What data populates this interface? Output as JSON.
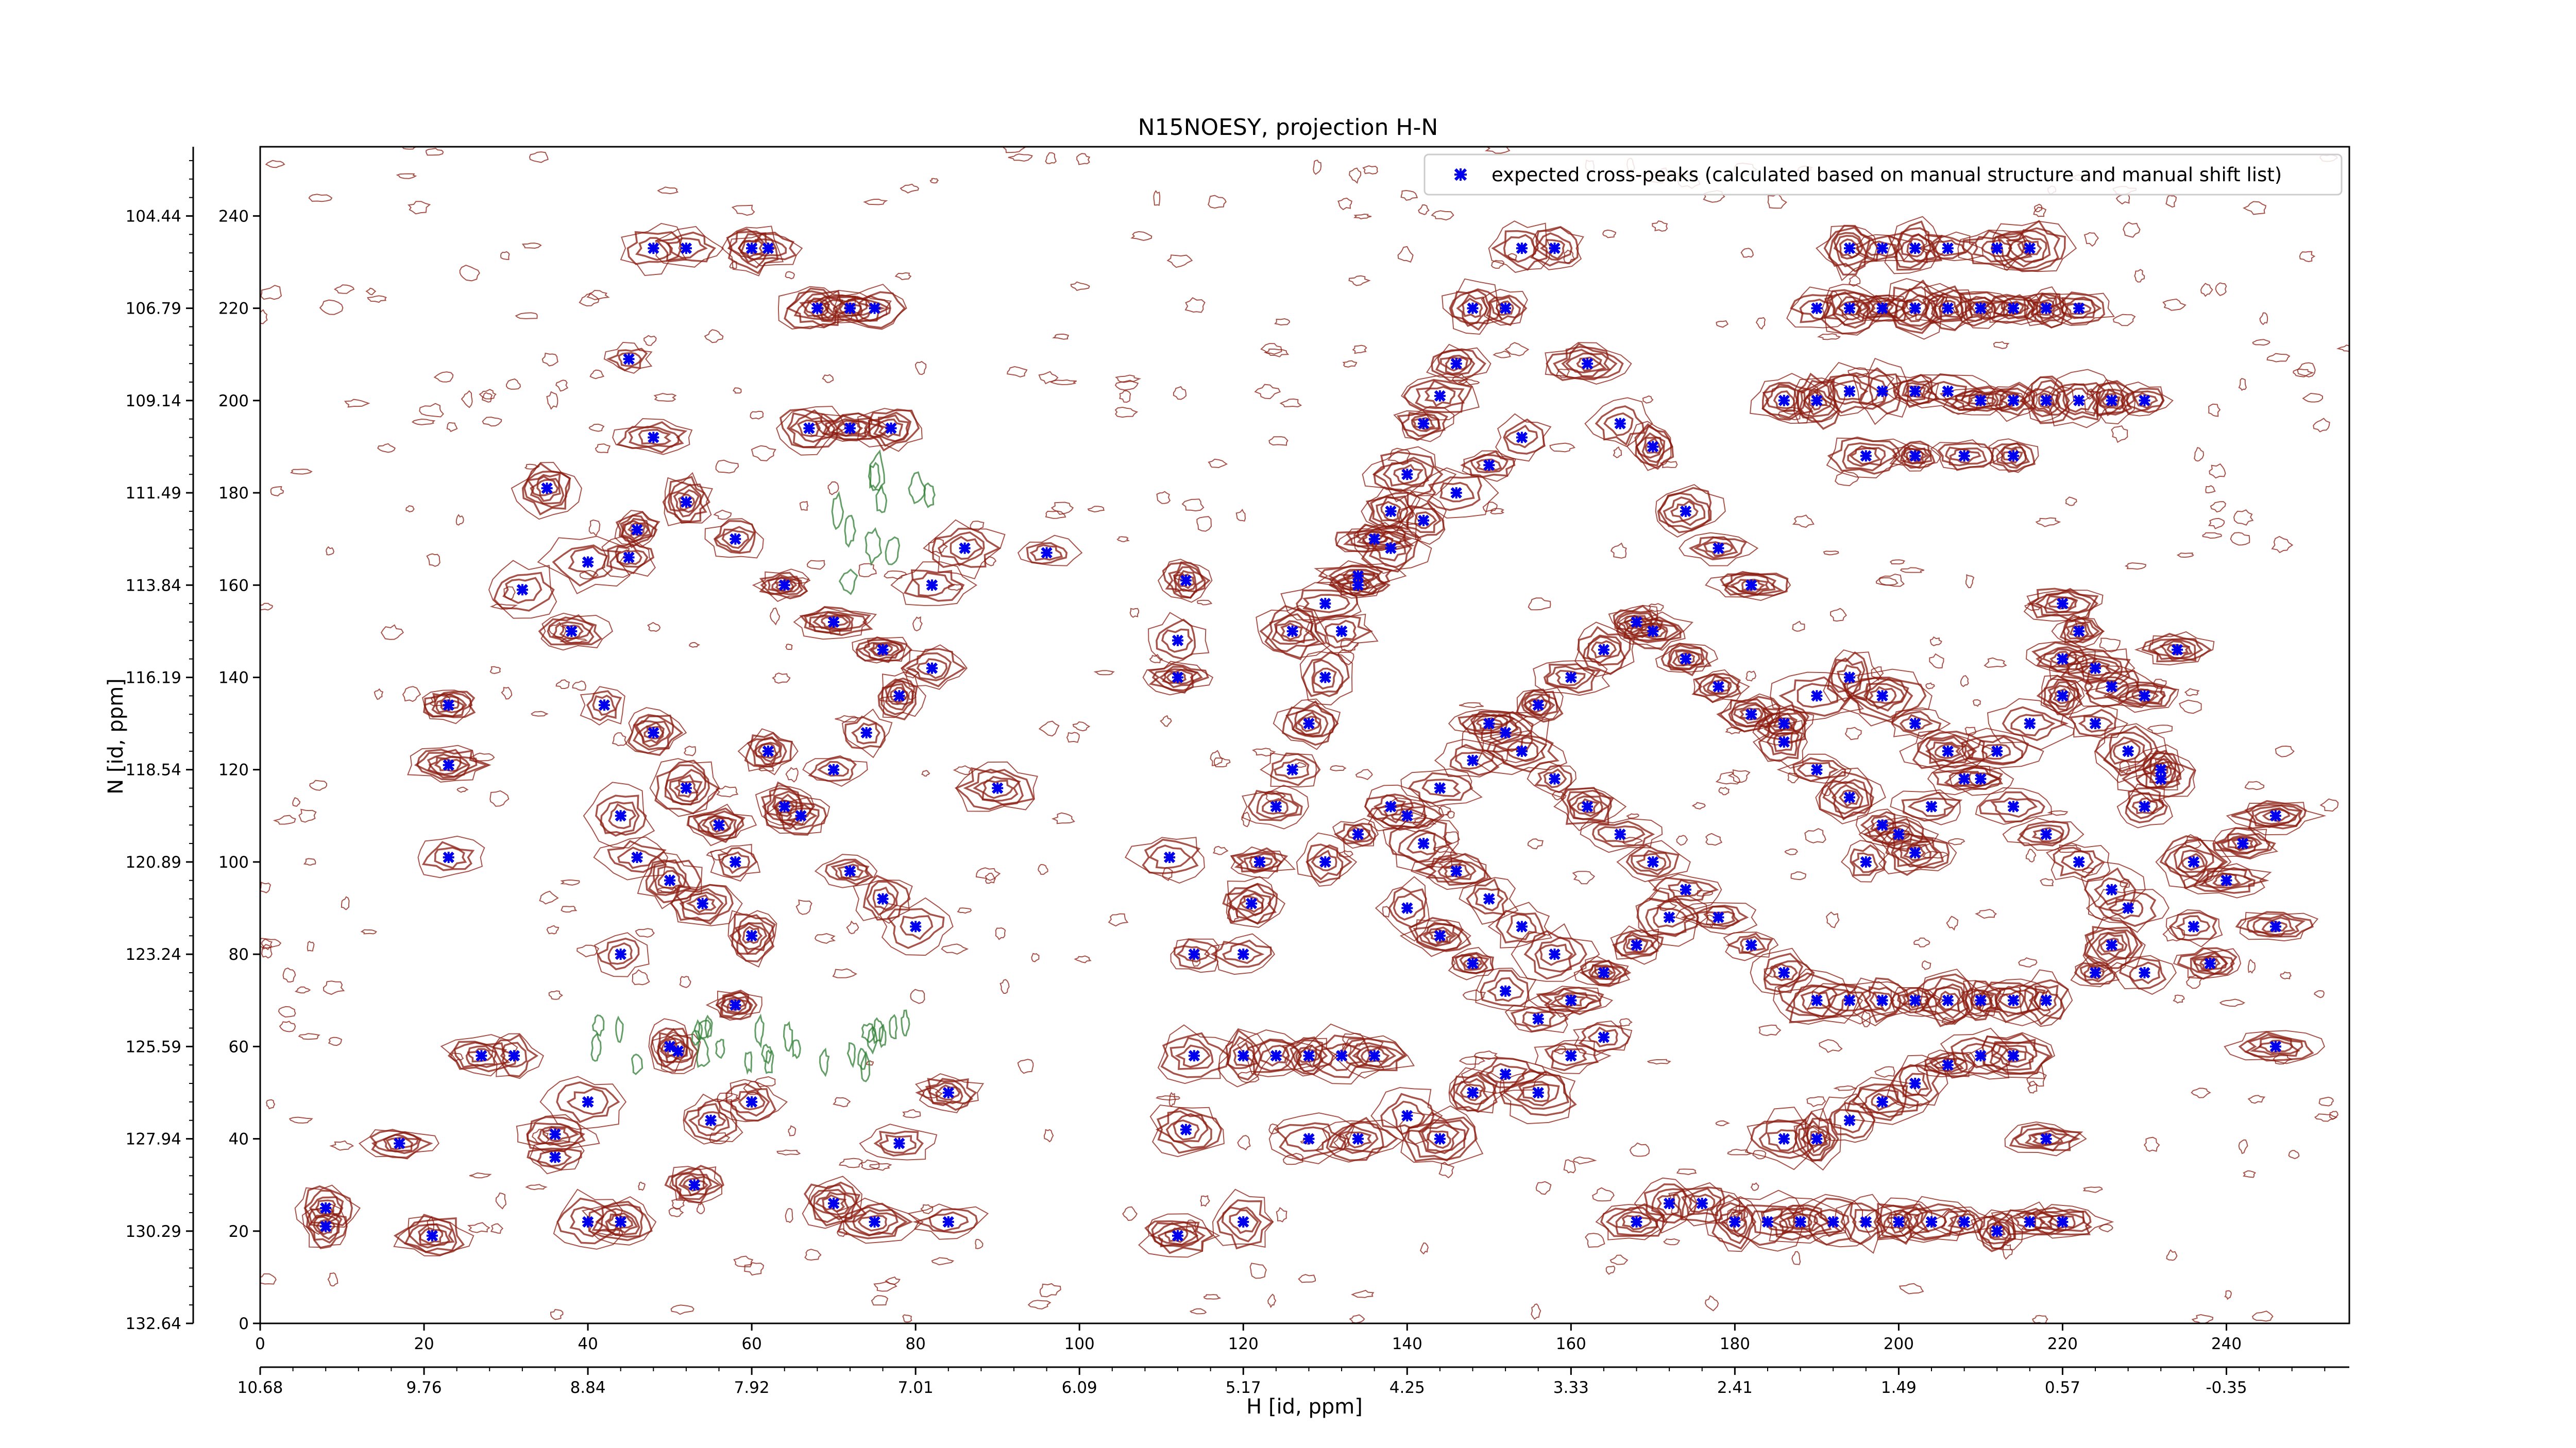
{
  "chart_data": {
    "type": "scatter",
    "title": "N15NOESY, projection H-N",
    "xlabel": "H [id, ppm]",
    "ylabel": "N [id, ppm]",
    "xlim": [
      0,
      255
    ],
    "ylim": [
      0,
      255
    ],
    "primary_x_ticks": [
      "0",
      "20",
      "40",
      "60",
      "80",
      "100",
      "120",
      "140",
      "160",
      "180",
      "200",
      "220",
      "240"
    ],
    "primary_y_ticks": [
      "0",
      "20",
      "40",
      "60",
      "80",
      "100",
      "120",
      "140",
      "160",
      "180",
      "200",
      "220",
      "240"
    ],
    "secondary_x_ticks": [
      "10.68",
      "9.76",
      "8.84",
      "7.92",
      "7.01",
      "6.09",
      "5.17",
      "4.25",
      "3.33",
      "2.41",
      "1.49",
      "0.57",
      "-0.35"
    ],
    "secondary_y_ticks": [
      "132.64",
      "130.29",
      "127.94",
      "125.59",
      "123.24",
      "120.89",
      "118.54",
      "116.19",
      "113.84",
      "111.49",
      "109.14",
      "106.79",
      "104.44"
    ],
    "legend": {
      "position": "top-right",
      "entries": [
        "expected cross-peaks (calculated based on manual structure and manual shift list)"
      ]
    },
    "colors": {
      "marker": "#0000ee",
      "contour_positive": "#8b1a0e",
      "contour_negative": "#2e7d32"
    },
    "series": [
      {
        "name": "expected cross-peaks (calculated based on manual structure and manual shift list)",
        "marker": "x",
        "points": [
          [
            8,
            25
          ],
          [
            8,
            21
          ],
          [
            21,
            19
          ],
          [
            17,
            39
          ],
          [
            27,
            58
          ],
          [
            31,
            58
          ],
          [
            23,
            101
          ],
          [
            23,
            121
          ],
          [
            23,
            134
          ],
          [
            32,
            159
          ],
          [
            35,
            181
          ],
          [
            36,
            36
          ],
          [
            36,
            41
          ],
          [
            40,
            48
          ],
          [
            40,
            22
          ],
          [
            44,
            22
          ],
          [
            44,
            80
          ],
          [
            45,
            166
          ],
          [
            48,
            192
          ],
          [
            45,
            209
          ],
          [
            48,
            233
          ],
          [
            52,
            233
          ],
          [
            50,
            60
          ],
          [
            51,
            59
          ],
          [
            60,
            233
          ],
          [
            62,
            233
          ],
          [
            68,
            220
          ],
          [
            72,
            220
          ],
          [
            75,
            220
          ],
          [
            67,
            194
          ],
          [
            72,
            194
          ],
          [
            77,
            194
          ],
          [
            75,
            22
          ],
          [
            70,
            26
          ],
          [
            78,
            39
          ],
          [
            84,
            22
          ],
          [
            84,
            50
          ],
          [
            60,
            84
          ],
          [
            58,
            69
          ],
          [
            60,
            48
          ],
          [
            55,
            44
          ],
          [
            53,
            30
          ],
          [
            38,
            150
          ],
          [
            42,
            134
          ],
          [
            48,
            128
          ],
          [
            52,
            116
          ],
          [
            56,
            108
          ],
          [
            62,
            124
          ],
          [
            66,
            110
          ],
          [
            72,
            98
          ],
          [
            76,
            92
          ],
          [
            80,
            86
          ],
          [
            44,
            110
          ],
          [
            46,
            101
          ],
          [
            50,
            96
          ],
          [
            54,
            91
          ],
          [
            58,
            100
          ],
          [
            64,
            112
          ],
          [
            70,
            120
          ],
          [
            74,
            128
          ],
          [
            78,
            136
          ],
          [
            82,
            142
          ],
          [
            40,
            165
          ],
          [
            46,
            172
          ],
          [
            52,
            178
          ],
          [
            58,
            170
          ],
          [
            64,
            160
          ],
          [
            70,
            152
          ],
          [
            76,
            146
          ],
          [
            82,
            160
          ],
          [
            86,
            168
          ],
          [
            90,
            116
          ],
          [
            96,
            167
          ],
          [
            111,
            101
          ],
          [
            112,
            140
          ],
          [
            112,
            148
          ],
          [
            113,
            161
          ],
          [
            114,
            80
          ],
          [
            114,
            58
          ],
          [
            113,
            42
          ],
          [
            112,
            19
          ],
          [
            120,
            22
          ],
          [
            120,
            80
          ],
          [
            121,
            91
          ],
          [
            122,
            100
          ],
          [
            124,
            112
          ],
          [
            126,
            120
          ],
          [
            128,
            130
          ],
          [
            130,
            140
          ],
          [
            132,
            150
          ],
          [
            134,
            160
          ],
          [
            136,
            170
          ],
          [
            138,
            176
          ],
          [
            140,
            184
          ],
          [
            142,
            195
          ],
          [
            144,
            201
          ],
          [
            146,
            208
          ],
          [
            148,
            220
          ],
          [
            152,
            220
          ],
          [
            154,
            233
          ],
          [
            158,
            233
          ],
          [
            162,
            208
          ],
          [
            166,
            195
          ],
          [
            170,
            190
          ],
          [
            174,
            176
          ],
          [
            178,
            168
          ],
          [
            182,
            160
          ],
          [
            120,
            58
          ],
          [
            124,
            58
          ],
          [
            128,
            58
          ],
          [
            132,
            58
          ],
          [
            136,
            58
          ],
          [
            128,
            40
          ],
          [
            134,
            40
          ],
          [
            140,
            45
          ],
          [
            144,
            40
          ],
          [
            148,
            50
          ],
          [
            152,
            54
          ],
          [
            156,
            50
          ],
          [
            160,
            58
          ],
          [
            164,
            62
          ],
          [
            168,
            22
          ],
          [
            172,
            26
          ],
          [
            176,
            26
          ],
          [
            180,
            22
          ],
          [
            184,
            22
          ],
          [
            188,
            22
          ],
          [
            192,
            22
          ],
          [
            196,
            22
          ],
          [
            200,
            22
          ],
          [
            204,
            22
          ],
          [
            208,
            22
          ],
          [
            212,
            20
          ],
          [
            216,
            22
          ],
          [
            220,
            22
          ],
          [
            186,
            40
          ],
          [
            190,
            40
          ],
          [
            194,
            44
          ],
          [
            198,
            48
          ],
          [
            202,
            52
          ],
          [
            206,
            56
          ],
          [
            210,
            58
          ],
          [
            214,
            58
          ],
          [
            218,
            40
          ],
          [
            190,
            220
          ],
          [
            194,
            220
          ],
          [
            198,
            220
          ],
          [
            202,
            220
          ],
          [
            206,
            220
          ],
          [
            210,
            220
          ],
          [
            214,
            220
          ],
          [
            218,
            220
          ],
          [
            222,
            220
          ],
          [
            194,
            233
          ],
          [
            198,
            233
          ],
          [
            202,
            233
          ],
          [
            206,
            233
          ],
          [
            212,
            233
          ],
          [
            216,
            233
          ],
          [
            186,
            200
          ],
          [
            190,
            200
          ],
          [
            194,
            202
          ],
          [
            198,
            202
          ],
          [
            202,
            202
          ],
          [
            206,
            202
          ],
          [
            210,
            200
          ],
          [
            214,
            200
          ],
          [
            218,
            200
          ],
          [
            222,
            200
          ],
          [
            226,
            200
          ],
          [
            230,
            200
          ],
          [
            196,
            188
          ],
          [
            202,
            188
          ],
          [
            208,
            188
          ],
          [
            214,
            188
          ],
          [
            150,
            130
          ],
          [
            154,
            124
          ],
          [
            158,
            118
          ],
          [
            162,
            112
          ],
          [
            166,
            106
          ],
          [
            170,
            100
          ],
          [
            174,
            94
          ],
          [
            178,
            88
          ],
          [
            182,
            82
          ],
          [
            186,
            76
          ],
          [
            190,
            70
          ],
          [
            194,
            70
          ],
          [
            198,
            70
          ],
          [
            202,
            70
          ],
          [
            206,
            70
          ],
          [
            210,
            70
          ],
          [
            214,
            70
          ],
          [
            218,
            70
          ],
          [
            186,
            130
          ],
          [
            190,
            136
          ],
          [
            194,
            140
          ],
          [
            198,
            136
          ],
          [
            202,
            130
          ],
          [
            206,
            124
          ],
          [
            210,
            118
          ],
          [
            214,
            112
          ],
          [
            218,
            106
          ],
          [
            222,
            100
          ],
          [
            226,
            94
          ],
          [
            230,
            136
          ],
          [
            234,
            146
          ],
          [
            240,
            96
          ],
          [
            242,
            104
          ],
          [
            246,
            110
          ],
          [
            246,
            86
          ],
          [
            246,
            60
          ],
          [
            196,
            100
          ],
          [
            200,
            106
          ],
          [
            204,
            112
          ],
          [
            208,
            118
          ],
          [
            212,
            124
          ],
          [
            216,
            130
          ],
          [
            220,
            136
          ],
          [
            224,
            142
          ],
          [
            170,
            150
          ],
          [
            174,
            144
          ],
          [
            178,
            138
          ],
          [
            182,
            132
          ],
          [
            186,
            126
          ],
          [
            190,
            120
          ],
          [
            194,
            114
          ],
          [
            198,
            108
          ],
          [
            202,
            102
          ],
          [
            140,
            110
          ],
          [
            144,
            116
          ],
          [
            148,
            122
          ],
          [
            152,
            128
          ],
          [
            156,
            134
          ],
          [
            160,
            140
          ],
          [
            164,
            146
          ],
          [
            168,
            152
          ],
          [
            140,
            90
          ],
          [
            144,
            84
          ],
          [
            148,
            78
          ],
          [
            152,
            72
          ],
          [
            156,
            66
          ],
          [
            160,
            70
          ],
          [
            164,
            76
          ],
          [
            168,
            82
          ],
          [
            172,
            88
          ],
          [
            130,
            100
          ],
          [
            134,
            106
          ],
          [
            138,
            112
          ],
          [
            142,
            104
          ],
          [
            146,
            98
          ],
          [
            150,
            92
          ],
          [
            154,
            86
          ],
          [
            158,
            80
          ],
          [
            126,
            150
          ],
          [
            130,
            156
          ],
          [
            134,
            162
          ],
          [
            138,
            168
          ],
          [
            142,
            174
          ],
          [
            146,
            180
          ],
          [
            150,
            186
          ],
          [
            154,
            192
          ],
          [
            230,
            112
          ],
          [
            232,
            120
          ],
          [
            236,
            100
          ],
          [
            236,
            86
          ],
          [
            238,
            78
          ],
          [
            220,
            156
          ],
          [
            222,
            150
          ],
          [
            220,
            144
          ],
          [
            226,
            138
          ],
          [
            224,
            130
          ],
          [
            228,
            124
          ],
          [
            232,
            118
          ],
          [
            224,
            76
          ],
          [
            226,
            82
          ],
          [
            228,
            90
          ],
          [
            230,
            76
          ]
        ]
      }
    ]
  }
}
